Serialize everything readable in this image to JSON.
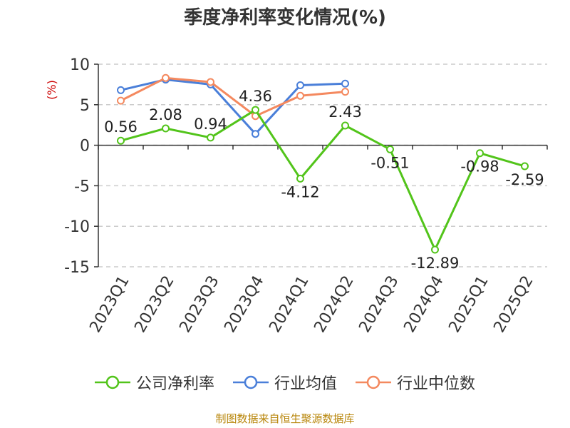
{
  "chart_data": {
    "type": "line",
    "title": "季度净利率变化情况(%)",
    "ylabel": "(%)",
    "xlabel": "",
    "categories": [
      "2023Q1",
      "2023Q2",
      "2023Q3",
      "2023Q4",
      "2024Q1",
      "2024Q2",
      "2024Q3",
      "2024Q4",
      "2025Q1",
      "2025Q2"
    ],
    "ylim": [
      -15,
      10
    ],
    "yticks": [
      10,
      5,
      0,
      -5,
      -10,
      -15
    ],
    "grid": "horizontal dashed",
    "legend_position": "bottom",
    "series": [
      {
        "name": "公司净利率",
        "color": "#52c41a",
        "values": [
          0.56,
          2.08,
          0.94,
          4.36,
          -4.12,
          2.43,
          -0.51,
          -12.89,
          -0.98,
          -2.59
        ],
        "labels": [
          "0.56",
          "2.08",
          "0.94",
          "4.36",
          "-4.12",
          "2.43",
          "-0.51",
          "-12.89",
          "-0.98",
          "-2.59"
        ]
      },
      {
        "name": "行业均值",
        "color": "#4a7fd9",
        "values": [
          6.8,
          8.1,
          7.5,
          1.4,
          7.4,
          7.6,
          null,
          null,
          null,
          null
        ]
      },
      {
        "name": "行业中位数",
        "color": "#f4895f",
        "values": [
          5.5,
          8.3,
          7.8,
          3.6,
          6.1,
          6.6,
          null,
          null,
          null,
          null
        ]
      }
    ],
    "source": "制图数据来自恒生聚源数据库"
  }
}
